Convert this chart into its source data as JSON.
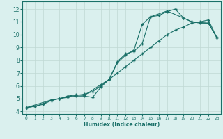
{
  "xlabel": "Humidex (Indice chaleur)",
  "background_color": "#daf0ee",
  "grid_color": "#c0d8d4",
  "line_color": "#1a7068",
  "spine_color": "#1a7068",
  "xlim": [
    -0.5,
    23.5
  ],
  "ylim": [
    3.8,
    12.6
  ],
  "xticks": [
    0,
    1,
    2,
    3,
    4,
    5,
    6,
    7,
    8,
    9,
    10,
    11,
    12,
    13,
    14,
    15,
    16,
    17,
    18,
    19,
    20,
    21,
    22,
    23
  ],
  "yticks": [
    4,
    5,
    6,
    7,
    8,
    9,
    10,
    11,
    12
  ],
  "line1_x": [
    0,
    1,
    2,
    3,
    4,
    5,
    6,
    7,
    8,
    9,
    10,
    11,
    12,
    13,
    14,
    15,
    16,
    17,
    18,
    19,
    20,
    21,
    22,
    23
  ],
  "line1_y": [
    4.3,
    4.4,
    4.6,
    4.9,
    5.0,
    5.1,
    5.2,
    5.2,
    5.1,
    5.9,
    6.5,
    7.8,
    8.4,
    8.8,
    10.8,
    11.4,
    11.5,
    11.8,
    12.0,
    11.3,
    11.0,
    10.9,
    10.9,
    9.8
  ],
  "line2_x": [
    0,
    1,
    2,
    3,
    4,
    5,
    6,
    7,
    8,
    9,
    10,
    11,
    12,
    13,
    14,
    15,
    16,
    17,
    18,
    19,
    20,
    21,
    22,
    23
  ],
  "line2_y": [
    4.3,
    4.4,
    4.55,
    4.85,
    5.0,
    5.15,
    5.25,
    5.35,
    5.55,
    6.0,
    6.5,
    7.0,
    7.5,
    8.0,
    8.5,
    9.0,
    9.5,
    10.0,
    10.35,
    10.6,
    10.9,
    11.0,
    11.15,
    9.8
  ],
  "line3_x": [
    0,
    3,
    4,
    5,
    6,
    7,
    9,
    10,
    11,
    12,
    13,
    14,
    15,
    17,
    19,
    20,
    22,
    23
  ],
  "line3_y": [
    4.3,
    4.9,
    5.0,
    5.2,
    5.3,
    5.25,
    6.1,
    6.5,
    7.9,
    8.5,
    8.7,
    9.3,
    11.4,
    11.85,
    11.3,
    11.0,
    10.9,
    9.8
  ]
}
